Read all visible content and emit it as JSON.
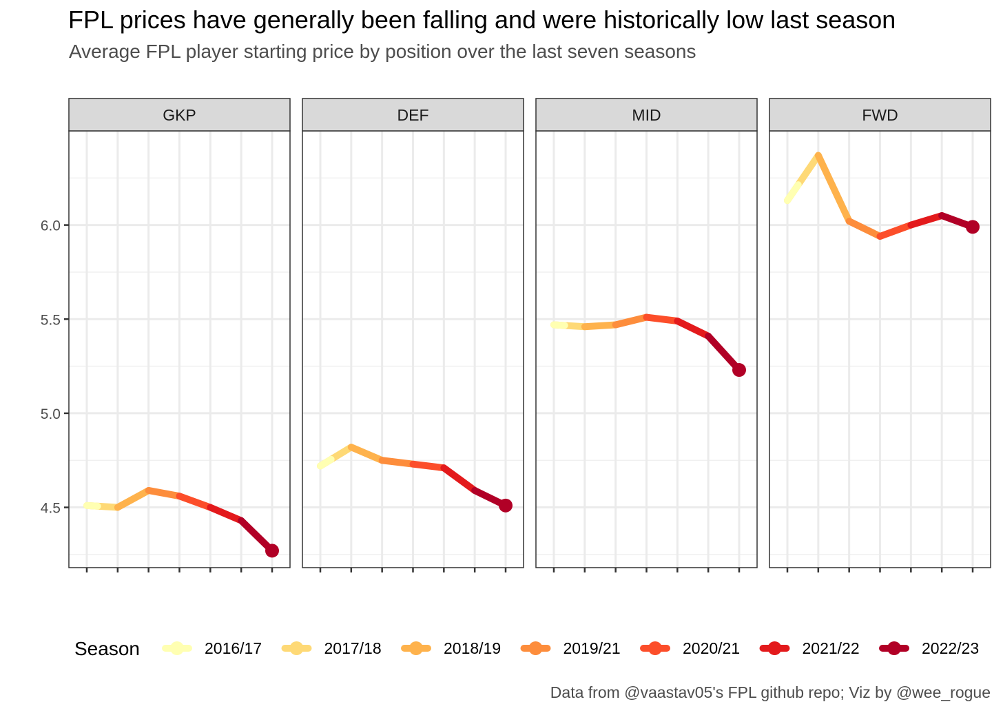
{
  "title": "FPL prices have generally been falling and were historically low last season",
  "subtitle": "Average FPL player starting price by position over the last seven seasons",
  "caption": "Data from @vaastav05's FPL github repo; Viz by @wee_rogue",
  "chart_data": {
    "type": "line",
    "facets": [
      "GKP",
      "DEF",
      "MID",
      "FWD"
    ],
    "x": [
      "2016/17",
      "2017/18",
      "2018/19",
      "2019/21",
      "2020/21",
      "2021/22",
      "2022/23"
    ],
    "series": [
      {
        "name": "GKP",
        "values": [
          4.51,
          4.5,
          4.59,
          4.56,
          4.5,
          4.43,
          4.27
        ]
      },
      {
        "name": "DEF",
        "values": [
          4.72,
          4.82,
          4.75,
          4.73,
          4.71,
          4.59,
          4.51
        ]
      },
      {
        "name": "MID",
        "values": [
          5.47,
          5.46,
          5.47,
          5.51,
          5.49,
          5.41,
          5.23
        ]
      },
      {
        "name": "FWD",
        "values": [
          6.13,
          6.37,
          6.02,
          5.94,
          6.0,
          6.05,
          5.99
        ]
      }
    ],
    "ylim": [
      4.18,
      6.5
    ],
    "yticks": [
      "4.5",
      "5.0",
      "5.5",
      "6.0"
    ],
    "ytick_values": [
      4.5,
      5.0,
      5.5,
      6.0
    ],
    "xlabel": "",
    "ylabel": "",
    "x_tick_labels_shown": false,
    "grid": true,
    "legend": {
      "title": "Season",
      "position": "bottom",
      "entries": [
        "2016/17",
        "2017/18",
        "2018/19",
        "2019/21",
        "2020/21",
        "2021/22",
        "2022/23"
      ]
    },
    "season_colors": [
      "#ffffb2",
      "#fed976",
      "#feb24c",
      "#fd8d3c",
      "#fc4e2a",
      "#e31a1c",
      "#b10026"
    ],
    "last_point_marker": true
  }
}
